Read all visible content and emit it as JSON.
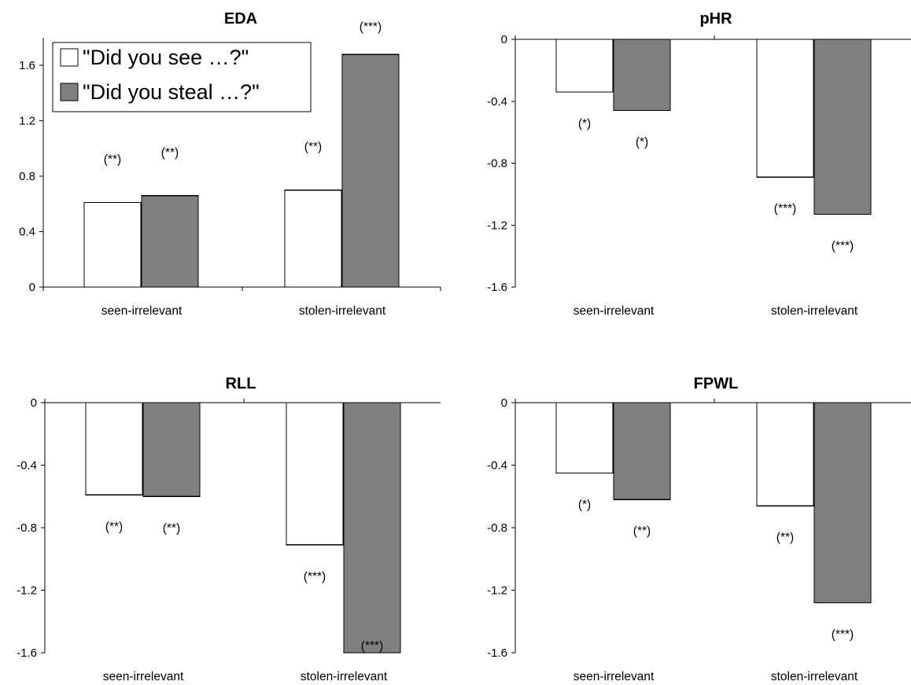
{
  "chart_data": [
    {
      "type": "bar",
      "title": "EDA",
      "categories": [
        "seen-irrelevant",
        "stolen-irrelevant"
      ],
      "ylim": [
        0,
        1.8
      ],
      "yticks": [
        "0",
        "0.4",
        "0.8",
        "1.2",
        "1.6"
      ],
      "series": [
        {
          "name": "\"Did you see …?\"",
          "values": [
            0.61,
            0.7
          ],
          "labels": [
            "(**)",
            "(**)"
          ]
        },
        {
          "name": "\"Did you steal …?\"",
          "values": [
            0.66,
            1.68
          ],
          "labels": [
            "(**)",
            "(***)"
          ]
        }
      ],
      "legend": "top-left"
    },
    {
      "type": "bar",
      "title": "pHR",
      "categories": [
        "seen-irrelevant",
        "stolen-irrelevant"
      ],
      "ylim": [
        -1.6,
        0
      ],
      "yticks": [
        "0",
        "-0.4",
        "-0.8",
        "-1.2",
        "-1.6"
      ],
      "series": [
        {
          "name": "\"Did you see …?\"",
          "values": [
            -0.34,
            -0.89
          ],
          "labels": [
            "(*)",
            "(***)"
          ]
        },
        {
          "name": "\"Did you steal …?\"",
          "values": [
            -0.46,
            -1.13
          ],
          "labels": [
            "(*)",
            "(***)"
          ]
        }
      ]
    },
    {
      "type": "bar",
      "title": "RLL",
      "categories": [
        "seen-irrelevant",
        "stolen-irrelevant"
      ],
      "ylim": [
        -1.6,
        0
      ],
      "yticks": [
        "0",
        "-0.4",
        "-0.8",
        "-1.2",
        "-1.6"
      ],
      "series": [
        {
          "name": "\"Did you see …?\"",
          "values": [
            -0.59,
            -0.91
          ],
          "labels": [
            "(**)",
            "(***)"
          ]
        },
        {
          "name": "\"Did you steal …?\"",
          "values": [
            -0.6,
            -1.6
          ],
          "labels": [
            "(**)",
            "(***)"
          ]
        }
      ]
    },
    {
      "type": "bar",
      "title": "FPWL",
      "categories": [
        "seen-irrelevant",
        "stolen-irrelevant"
      ],
      "ylim": [
        -1.6,
        0
      ],
      "yticks": [
        "0",
        "-0.4",
        "-0.8",
        "-1.2",
        "-1.6"
      ],
      "series": [
        {
          "name": "\"Did you see …?\"",
          "values": [
            -0.45,
            -0.66
          ],
          "labels": [
            "(*)",
            "(**)"
          ]
        },
        {
          "name": "\"Did you steal …?\"",
          "values": [
            -0.62,
            -1.28
          ],
          "labels": [
            "(**)",
            "(***)"
          ]
        }
      ]
    }
  ],
  "colors": {
    "series_0": "#ffffff",
    "series_1": "#808080"
  }
}
